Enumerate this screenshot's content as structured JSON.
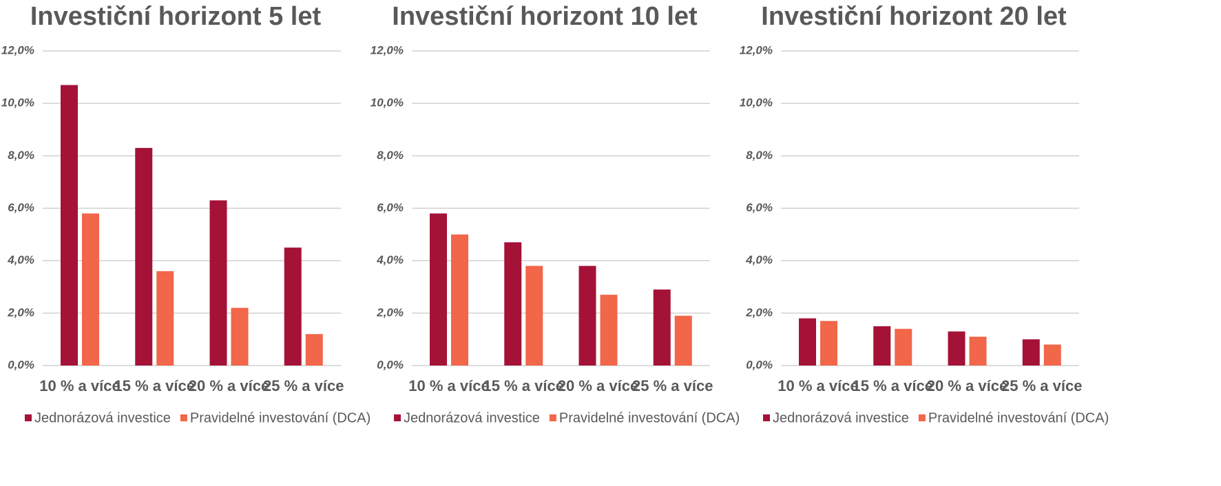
{
  "chart_data": [
    {
      "type": "bar",
      "title": "Investiční horizont 5 let",
      "categories": [
        "10 % a více",
        "15 % a více",
        "20 % a více",
        "25 % a více"
      ],
      "series": [
        {
          "name": "Jednorázová investice",
          "color": "#a51237",
          "values": [
            10.7,
            8.3,
            6.3,
            4.5
          ]
        },
        {
          "name": "Pravidelné investování (DCA)",
          "color": "#f26649",
          "values": [
            5.8,
            3.6,
            2.2,
            1.2
          ]
        }
      ],
      "ylim": [
        0,
        12
      ],
      "yticks": [
        {
          "value": 0,
          "label": "0,0%"
        },
        {
          "value": 2,
          "label": "2,0%"
        },
        {
          "value": 4,
          "label": "4,0%"
        },
        {
          "value": 6,
          "label": "6,0%"
        },
        {
          "value": 8,
          "label": "8,0%"
        },
        {
          "value": 10,
          "label": "10,0%"
        },
        {
          "value": 12,
          "label": "12,0%"
        }
      ],
      "grid": true,
      "legend": "bottom"
    },
    {
      "type": "bar",
      "title": "Investiční horizont 10 let",
      "categories": [
        "10 % a více",
        "15 % a více",
        "20 % a více",
        "25 % a více"
      ],
      "series": [
        {
          "name": "Jednorázová investice",
          "color": "#a51237",
          "values": [
            5.8,
            4.7,
            3.8,
            2.9
          ]
        },
        {
          "name": "Pravidelné investování (DCA)",
          "color": "#f26649",
          "values": [
            5.0,
            3.8,
            2.7,
            1.9
          ]
        }
      ],
      "ylim": [
        0,
        12
      ],
      "yticks": [
        {
          "value": 0,
          "label": "0,0%"
        },
        {
          "value": 2,
          "label": "2,0%"
        },
        {
          "value": 4,
          "label": "4,0%"
        },
        {
          "value": 6,
          "label": "6,0%"
        },
        {
          "value": 8,
          "label": "8,0%"
        },
        {
          "value": 10,
          "label": "10,0%"
        },
        {
          "value": 12,
          "label": "12,0%"
        }
      ],
      "grid": true,
      "legend": "bottom"
    },
    {
      "type": "bar",
      "title": "Investiční horizont 20 let",
      "categories": [
        "10 % a více",
        "15 % a více",
        "20 % a více",
        "25 % a více"
      ],
      "series": [
        {
          "name": "Jednorázová investice",
          "color": "#a51237",
          "values": [
            1.8,
            1.5,
            1.3,
            1.0
          ]
        },
        {
          "name": "Pravidelné investování (DCA)",
          "color": "#f26649",
          "values": [
            1.7,
            1.4,
            1.1,
            0.8
          ]
        }
      ],
      "ylim": [
        0,
        12
      ],
      "yticks": [
        {
          "value": 0,
          "label": "0,0%"
        },
        {
          "value": 2,
          "label": "2,0%"
        },
        {
          "value": 4,
          "label": "4,0%"
        },
        {
          "value": 6,
          "label": "6,0%"
        },
        {
          "value": 8,
          "label": "8,0%"
        },
        {
          "value": 10,
          "label": "10,0%"
        },
        {
          "value": 12,
          "label": "12,0%"
        }
      ],
      "grid": true,
      "legend": "bottom"
    }
  ]
}
